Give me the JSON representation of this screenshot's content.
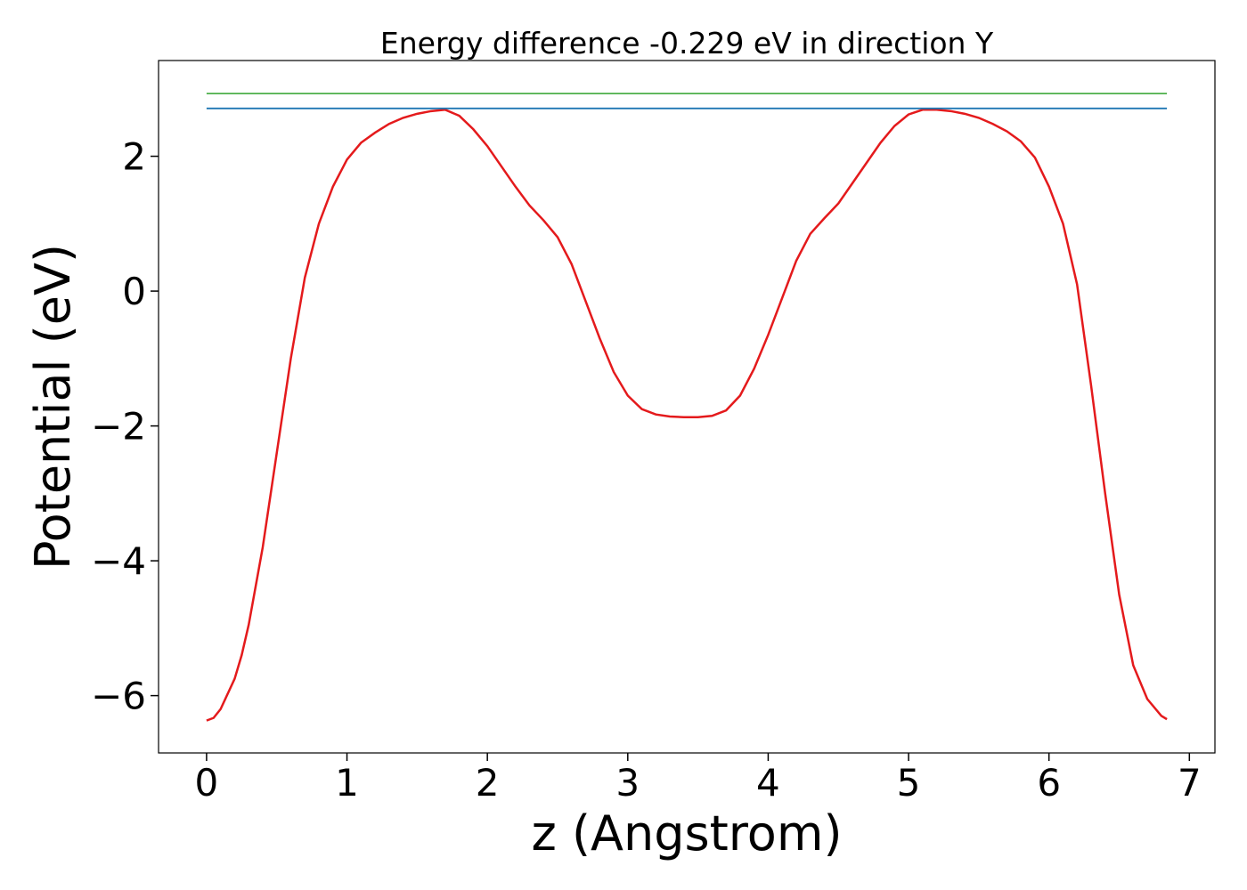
{
  "chart_data": {
    "type": "line",
    "title": "Energy difference -0.229 eV in direction Y",
    "xlabel": "z (Angstrom)",
    "ylabel": "Potential (eV)",
    "xlim": [
      -0.342,
      7.182
    ],
    "ylim": [
      -6.85,
      3.42
    ],
    "xticks": [
      0,
      1,
      2,
      3,
      4,
      5,
      6,
      7
    ],
    "yticks": [
      {
        "value": -6,
        "label": "−6"
      },
      {
        "value": -4,
        "label": "−4"
      },
      {
        "value": -2,
        "label": "−2"
      },
      0,
      2
    ],
    "series": [
      {
        "color": "#e41a1c",
        "x": [
          0,
          0.05,
          0.1,
          0.2,
          0.25,
          0.3,
          0.4,
          0.5,
          0.6,
          0.7,
          0.8,
          0.9,
          1.0,
          1.1,
          1.2,
          1.3,
          1.4,
          1.5,
          1.6,
          1.7,
          1.8,
          1.9,
          2.0,
          2.1,
          2.2,
          2.3,
          2.4,
          2.5,
          2.6,
          2.7,
          2.8,
          2.9,
          3.0,
          3.1,
          3.2,
          3.3,
          3.4,
          3.5,
          3.6,
          3.7,
          3.8,
          3.9,
          4.0,
          4.1,
          4.2,
          4.3,
          4.4,
          4.5,
          4.6,
          4.7,
          4.8,
          4.9,
          5.0,
          5.1,
          5.2,
          5.3,
          5.4,
          5.5,
          5.6,
          5.7,
          5.8,
          5.9,
          6.0,
          6.1,
          6.2,
          6.3,
          6.4,
          6.5,
          6.6,
          6.7,
          6.8,
          6.84
        ],
        "values": [
          -6.37,
          -6.33,
          -6.2,
          -5.75,
          -5.4,
          -4.95,
          -3.8,
          -2.4,
          -1.0,
          0.2,
          1.0,
          1.55,
          1.95,
          2.2,
          2.35,
          2.48,
          2.57,
          2.63,
          2.67,
          2.69,
          2.6,
          2.4,
          2.15,
          1.85,
          1.55,
          1.27,
          1.05,
          0.8,
          0.4,
          -0.15,
          -0.7,
          -1.2,
          -1.55,
          -1.75,
          -1.83,
          -1.86,
          -1.87,
          -1.87,
          -1.85,
          -1.77,
          -1.55,
          -1.15,
          -0.65,
          -0.1,
          0.45,
          0.85,
          1.08,
          1.3,
          1.6,
          1.9,
          2.2,
          2.45,
          2.62,
          2.69,
          2.69,
          2.67,
          2.63,
          2.57,
          2.48,
          2.37,
          2.22,
          1.98,
          1.55,
          1.0,
          0.1,
          -1.4,
          -3.0,
          -4.5,
          -5.55,
          -6.05,
          -6.3,
          -6.35
        ]
      },
      {
        "color": "#1f77b4",
        "x": [
          0,
          6.84
        ],
        "values": [
          2.71,
          2.71
        ]
      },
      {
        "color": "#4daf4a",
        "x": [
          0,
          6.84
        ],
        "values": [
          2.93,
          2.93
        ]
      }
    ]
  }
}
